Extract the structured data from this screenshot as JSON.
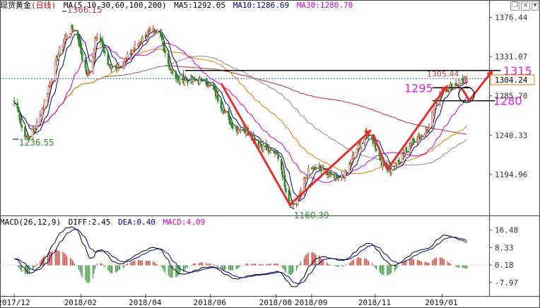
{
  "header": {
    "instrument": "现货黄金",
    "period": "(日线)",
    "ma_label": "MA(5,10,30,60,100,200)",
    "ma5": "MA5:1292.05",
    "ma10": "MA10:1286.69",
    "ma30": "MA30:1280.70",
    "macd_params": "MACD(26,12,9)",
    "diff": "DIFF:2.45",
    "dea": "DEA:0.40",
    "macd": "MACD:4.09"
  },
  "window_buttons": {
    "restore": "❐",
    "close": "×",
    "menu": "▾"
  },
  "colors": {
    "up": "#c0392b",
    "down": "#2e8b2e",
    "ma5": "#000000",
    "ma10": "#000080",
    "ma30": "#cc00cc",
    "ma60": "#e07800",
    "ma100": "#888888",
    "ma200": "#b03030",
    "annotation": "#e03030",
    "level_text": "#e020e0",
    "dea": "#00008b"
  },
  "chart_data": [
    {
      "type": "candlestick",
      "title": "现货黄金(日线)",
      "x_tick_labels": [
        "2017/12",
        "2018/02",
        "2018/04",
        "2018/06",
        "2018/08",
        "2018/09",
        "2018/11",
        "2019/01"
      ],
      "y_tick_labels": [
        "1376.44",
        "1331.07",
        "1285.70",
        "1240.33",
        "1194.96"
      ],
      "ylim": [
        1150,
        1385
      ],
      "path_keypoints": [
        {
          "date": "2017/12/01",
          "price": 1278
        },
        {
          "date": "2017/12/12",
          "price": 1238
        },
        {
          "date": "2018/01/25",
          "price": 1362
        },
        {
          "date": "2018/02/08",
          "price": 1310
        },
        {
          "date": "2018/02/16",
          "price": 1355
        },
        {
          "date": "2018/03/01",
          "price": 1318
        },
        {
          "date": "2018/04/11",
          "price": 1360
        },
        {
          "date": "2018/05/01",
          "price": 1305
        },
        {
          "date": "2018/05/25",
          "price": 1303
        },
        {
          "date": "2018/06/28",
          "price": 1247
        },
        {
          "date": "2018/07/31",
          "price": 1220
        },
        {
          "date": "2018/08/16",
          "price": 1160.39
        },
        {
          "date": "2018/09/04",
          "price": 1202
        },
        {
          "date": "2018/09/28",
          "price": 1190
        },
        {
          "date": "2018/10/25",
          "price": 1240
        },
        {
          "date": "2018/11/13",
          "price": 1201
        },
        {
          "date": "2018/12/14",
          "price": 1240
        },
        {
          "date": "2019/01/04",
          "price": 1294
        },
        {
          "date": "2019/01/25",
          "price": 1304.24
        }
      ],
      "high_label": "1366.15",
      "low_labels": [
        "1236.55",
        "1160.39"
      ],
      "recent_high_label": "1305.44",
      "last_price": "1304.24",
      "levels": [
        {
          "value": 1315,
          "label": "1315"
        },
        {
          "value": 1295,
          "label": "1295"
        },
        {
          "value": 1280,
          "label": "1280"
        }
      ],
      "moving_averages": [
        "MA5",
        "MA10",
        "MA30",
        "MA60",
        "MA100",
        "MA200"
      ]
    },
    {
      "type": "bar",
      "title": "MACD(26,12,9)",
      "series": [
        {
          "name": "DIFF",
          "last": 2.45
        },
        {
          "name": "DEA",
          "last": 0.4
        },
        {
          "name": "MACD",
          "last": 4.09
        }
      ],
      "y_tick_labels": [
        "16.48",
        "8.33",
        "0.18",
        "-7.97"
      ],
      "ylim": [
        -12,
        19
      ]
    }
  ]
}
